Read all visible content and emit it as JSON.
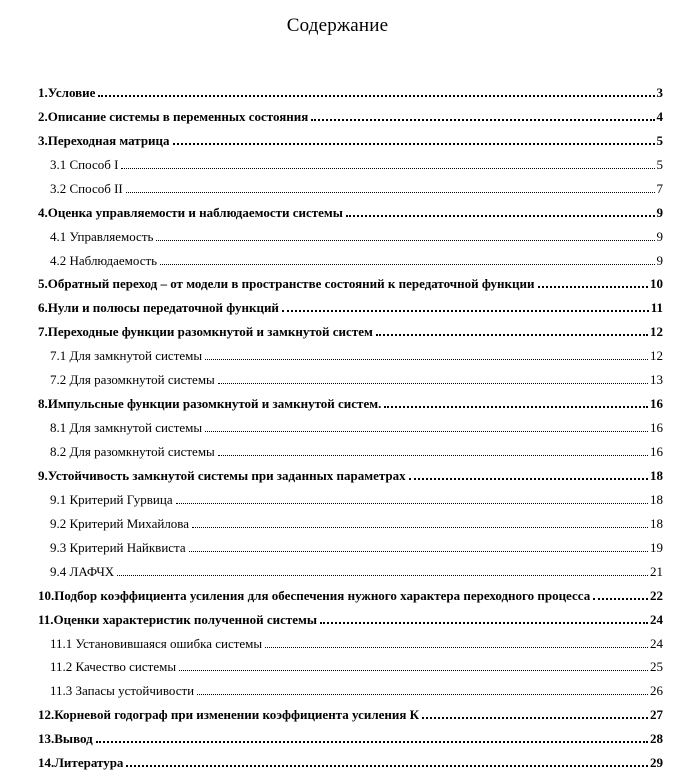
{
  "document": {
    "title": "Содержание"
  },
  "toc": {
    "entries": [
      {
        "label": "1.Условие",
        "page": "3",
        "level": 1
      },
      {
        "label": "2.Описание системы в переменных состояния",
        "page": "4",
        "level": 1
      },
      {
        "label": "3.Переходная матрица",
        "page": "5",
        "level": 1
      },
      {
        "label": "3.1 Способ I",
        "page": "5",
        "level": 2
      },
      {
        "label": "3.2 Способ II",
        "page": "7",
        "level": 2
      },
      {
        "label": "4.Оценка управляемости и наблюдаемости системы",
        "page": "9",
        "level": 1
      },
      {
        "label": "4.1 Управляемость",
        "page": "9",
        "level": 2
      },
      {
        "label": "4.2 Наблюдаемость",
        "page": "9",
        "level": 2
      },
      {
        "label": "5.Обратный переход – от модели в пространстве состояний к передаточной функции",
        "page": "10",
        "level": 1
      },
      {
        "label": "6.Нули и полюсы передаточной функций",
        "page": "11",
        "level": 1
      },
      {
        "label": "7.Переходные функции разомкнутой и замкнутой систем",
        "page": "12",
        "level": 1
      },
      {
        "label": "7.1 Для замкнутой системы",
        "page": "12",
        "level": 2
      },
      {
        "label": "7.2 Для разомкнутой системы",
        "page": "13",
        "level": 2
      },
      {
        "label": "8.Импульсные функции разомкнутой и замкнутой систем.",
        "page": "16",
        "level": 1
      },
      {
        "label": "8.1 Для замкнутой системы",
        "page": "16",
        "level": 2
      },
      {
        "label": "8.2 Для разомкнутой системы",
        "page": "16",
        "level": 2
      },
      {
        "label": "9.Устойчивость замкнутой системы при заданных параметрах",
        "page": "18",
        "level": 1
      },
      {
        "label": "9.1 Критерий Гурвица",
        "page": "18",
        "level": 2
      },
      {
        "label": "9.2 Критерий Михайлова",
        "page": "18",
        "level": 2
      },
      {
        "label": "9.3 Критерий Найквиста",
        "page": "19",
        "level": 2
      },
      {
        "label": "9.4 ЛАФЧХ",
        "page": "21",
        "level": 2
      },
      {
        "label": "10.Подбор коэффициента усиления для обеспечения нужного характера переходного процесса",
        "page": "22",
        "level": 1
      },
      {
        "label": "11.Оценки характеристик полученной системы",
        "page": "24",
        "level": 1
      },
      {
        "label": "11.1 Установившаяся ошибка системы",
        "page": "24",
        "level": 2
      },
      {
        "label": "11.2 Качество системы",
        "page": "25",
        "level": 2
      },
      {
        "label": "11.3 Запасы устойчивости",
        "page": "26",
        "level": 2
      },
      {
        "label": "12.Корневой годограф при изменении коэффициента усиления К",
        "page": "27",
        "level": 1
      },
      {
        "label": "13.Вывод",
        "page": "28",
        "level": 1
      },
      {
        "label": "14.Литература",
        "page": "29",
        "level": 1
      }
    ]
  }
}
